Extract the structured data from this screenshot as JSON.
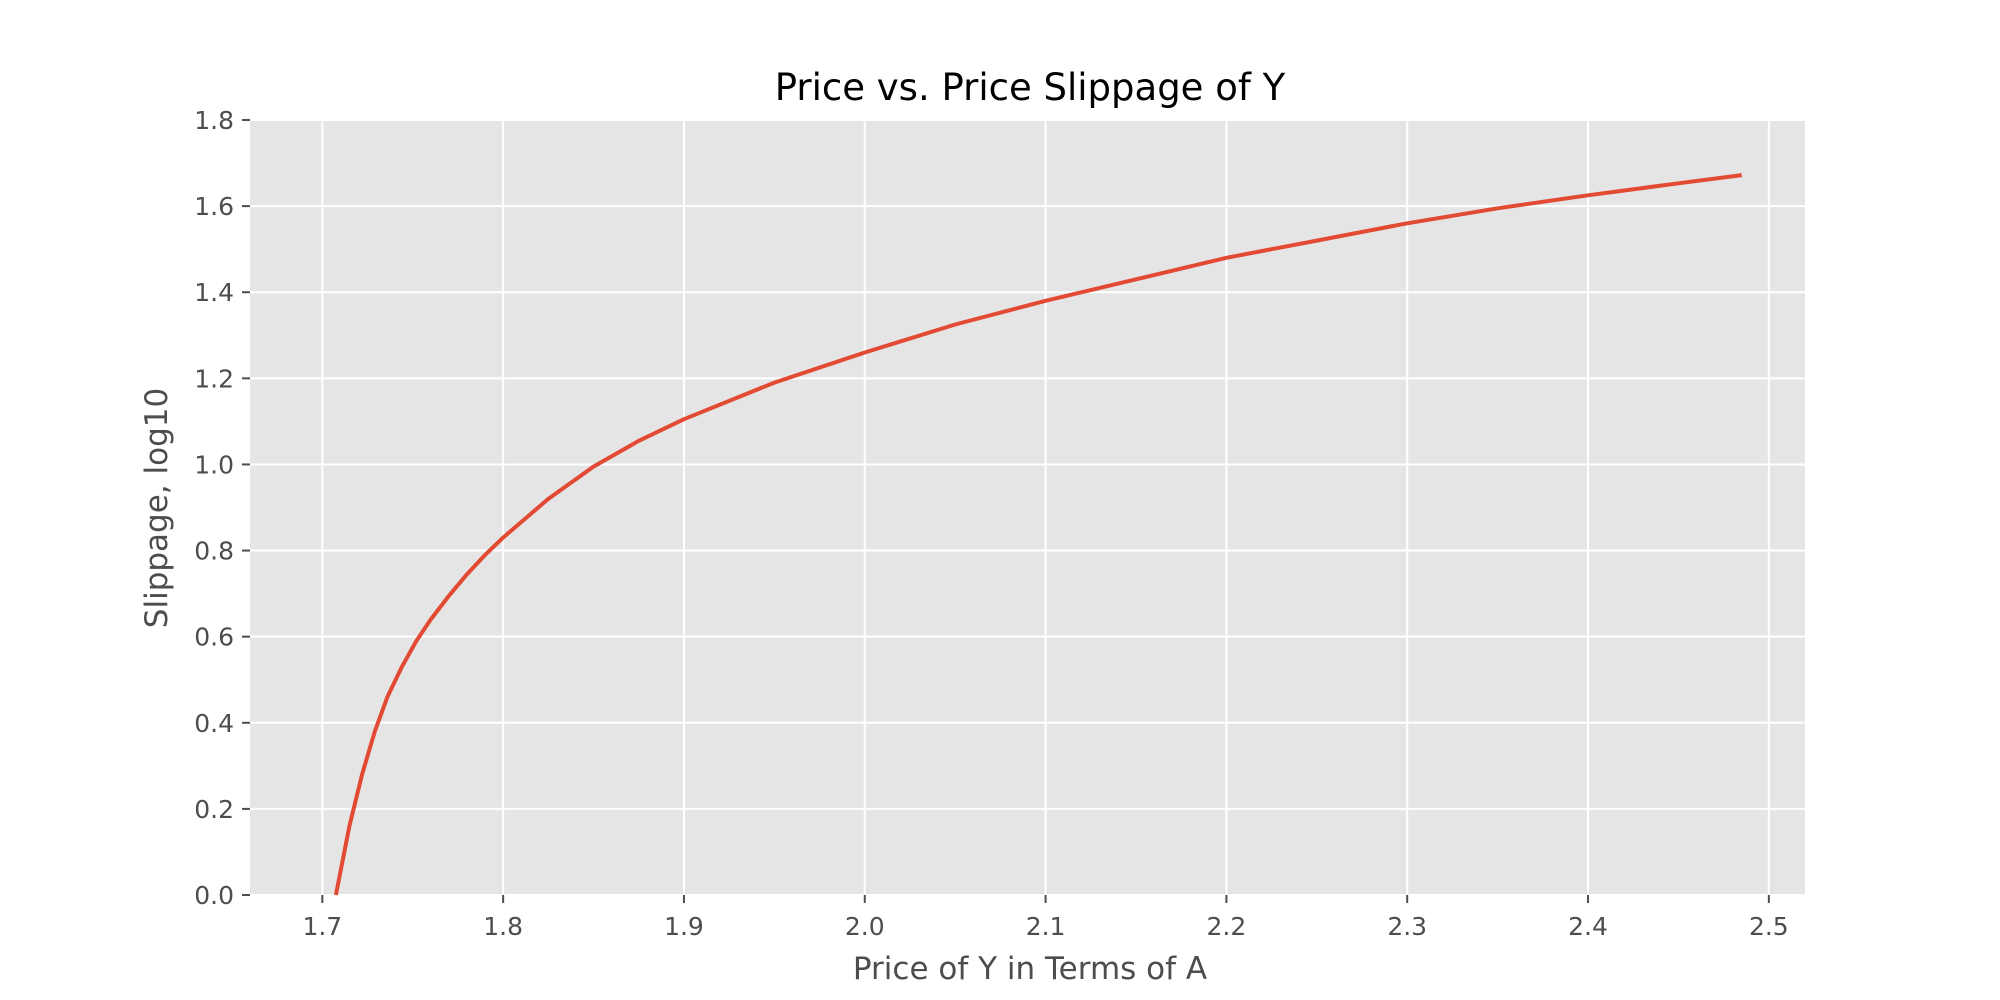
{
  "chart_data": {
    "type": "line",
    "title": "Price vs. Price Slippage of Y",
    "xlabel": "Price of Y in Terms of A",
    "ylabel": "Slippage, log10",
    "xlim": [
      1.66,
      2.52
    ],
    "ylim": [
      0.0,
      1.8
    ],
    "x_ticks": [
      1.7,
      1.8,
      1.9,
      2.0,
      2.1,
      2.2,
      2.3,
      2.4,
      2.5
    ],
    "y_ticks": [
      0.0,
      0.2,
      0.4,
      0.6,
      0.8,
      1.0,
      1.2,
      1.4,
      1.6,
      1.8
    ],
    "x_tick_labels": [
      "1.7",
      "1.8",
      "1.9",
      "2.0",
      "2.1",
      "2.2",
      "2.3",
      "2.4",
      "2.5"
    ],
    "y_tick_labels": [
      "0.0",
      "0.2",
      "0.4",
      "0.6",
      "0.8",
      "1.0",
      "1.2",
      "1.4",
      "1.6",
      "1.8"
    ],
    "grid": true,
    "legend": "none",
    "colors": {
      "line": "#e24a33",
      "plot_bg": "#e5e5e5",
      "grid": "#ffffff",
      "text": "#4d4d4d",
      "title": "#000000"
    },
    "series": [
      {
        "x": [
          1.7075,
          1.715,
          1.722,
          1.729,
          1.736,
          1.744,
          1.752,
          1.76,
          1.77,
          1.78,
          1.79,
          1.8,
          1.825,
          1.85,
          1.875,
          1.9,
          1.95,
          2.0,
          2.05,
          2.1,
          2.15,
          2.2,
          2.25,
          2.3,
          2.35,
          2.4,
          2.45,
          2.485
        ],
        "y": [
          0.0,
          0.16,
          0.28,
          0.38,
          0.46,
          0.53,
          0.59,
          0.64,
          0.695,
          0.745,
          0.79,
          0.83,
          0.92,
          0.995,
          1.055,
          1.105,
          1.19,
          1.26,
          1.325,
          1.38,
          1.43,
          1.48,
          1.52,
          1.56,
          1.595,
          1.625,
          1.653,
          1.672
        ]
      }
    ]
  }
}
